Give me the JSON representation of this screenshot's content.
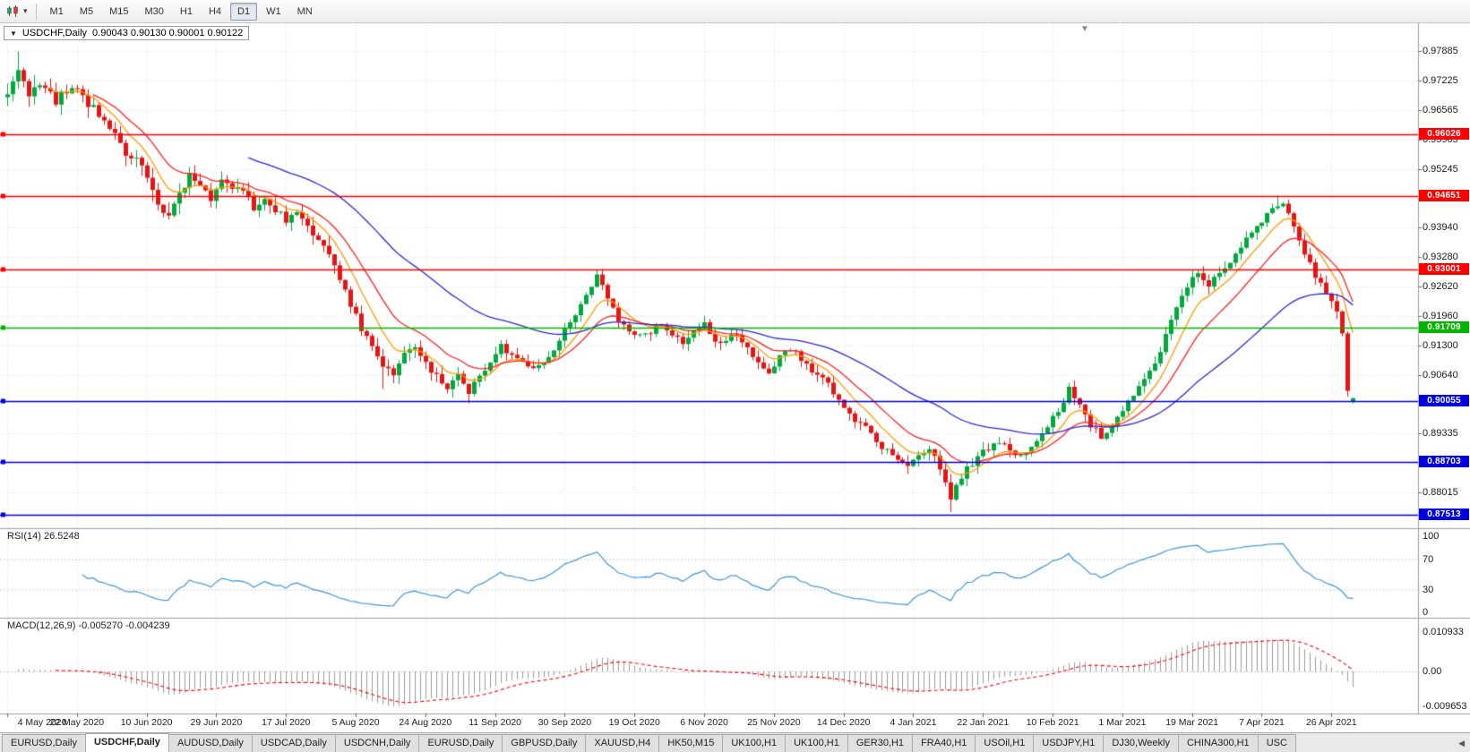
{
  "toolbar": {
    "timeframes": [
      "M1",
      "M5",
      "M15",
      "M30",
      "H1",
      "H4",
      "D1",
      "W1",
      "MN"
    ],
    "active": "D1"
  },
  "title": {
    "symbol": "USDCHF,Daily",
    "ohlc": "0.90043 0.90130 0.90001 0.90122"
  },
  "panels": {
    "rsi": {
      "name": "RSI(14)",
      "value": "26.5248",
      "axis": [
        "100",
        "70",
        "30",
        "0"
      ],
      "axis_values": [
        100,
        70,
        30,
        0
      ],
      "levels": [
        70,
        30
      ]
    },
    "macd": {
      "name": "MACD(12,26,9)",
      "value": "-0.005270 -0.004239",
      "axis": [
        "0.010933",
        "0.00",
        "-0.009653"
      ],
      "axis_values": [
        0.010933,
        0,
        -0.009653
      ]
    }
  },
  "tabs": {
    "items": [
      "EURUSD,Daily",
      "USDCHF,Daily",
      "AUDUSD,Daily",
      "USDCAD,Daily",
      "USDCNH,Daily",
      "EURUSD,Daily",
      "GBPUSD,Daily",
      "XAUUSD,H4",
      "HK50,M15",
      "UK100,H1",
      "UK100,H1",
      "GER30,H1",
      "FRA40,H1",
      "USOil,H1",
      "USDJPY,H1",
      "DJ30,Weekly",
      "CHINA300,H1",
      "USC"
    ],
    "active_index": 1,
    "scroll_arrow": "◀"
  },
  "colors": {
    "up": "#00A93E",
    "down": "#E81414",
    "ma_fast": "#FF9900",
    "ma_mid": "#FF2020",
    "ma_slow": "#2A2AD4",
    "rsi_line": "#3C96DC",
    "macd_hist": "#9A9A9A",
    "macd_signal": "#FF0000",
    "grid": "#E0E0E0",
    "frame": "#9E9E9E"
  },
  "chart_data": {
    "type": "candlestick",
    "symbol": "USDCHF",
    "period": "Daily",
    "current_ohlc": {
      "open": 0.90043,
      "high": 0.9013,
      "low": 0.90001,
      "close": 0.90122
    },
    "bars": 252,
    "bars_per_tick": 13,
    "x_tick_labels": [
      "4 May 2020",
      "22 May 2020",
      "10 Jun 2020",
      "29 Jun 2020",
      "17 Jul 2020",
      "5 Aug 2020",
      "24 Aug 2020",
      "11 Sep 2020",
      "30 Sep 2020",
      "19 Oct 2020",
      "6 Nov 2020",
      "25 Nov 2020",
      "14 Dec 2020",
      "4 Jan 2021",
      "22 Jan 2021",
      "10 Feb 2021",
      "1 Mar 2021",
      "19 Mar 2021",
      "7 Apr 2021",
      "26 Apr 2021"
    ],
    "y_range": [
      0.87253,
      0.9847
    ],
    "y_axis_labels": [
      "0.97885",
      "0.97225",
      "0.96565",
      "0.95905",
      "0.95245",
      "0.94585",
      "0.93940",
      "0.93280",
      "0.92620",
      "0.91960",
      "0.91300",
      "0.90640",
      "0.89335",
      "0.88015"
    ],
    "horizontal_levels": [
      {
        "price": 0.96026,
        "label": "0.96026",
        "color": "#FF0000"
      },
      {
        "price": 0.94651,
        "label": "0.94651",
        "color": "#FF0000"
      },
      {
        "price": 0.93001,
        "label": "0.93001",
        "color": "#FF0000"
      },
      {
        "price": 0.91709,
        "label": "0.91709",
        "color": "#00B400"
      },
      {
        "price": 0.90055,
        "label": "0.90055",
        "color": "#0000E0"
      },
      {
        "price": 0.88703,
        "label": "0.88703",
        "color": "#0000E0"
      },
      {
        "price": 0.87513,
        "label": "0.87513",
        "color": "#0000E0"
      }
    ],
    "moving_averages": [
      {
        "type": "ema",
        "period": 8,
        "color_key": "ma_fast"
      },
      {
        "type": "ema",
        "period": 16,
        "color_key": "ma_mid"
      },
      {
        "type": "ema",
        "period": 45,
        "color_key": "ma_slow"
      }
    ],
    "indicators": {
      "rsi": {
        "period": 14,
        "current": 26.5248
      },
      "macd": {
        "fast": 12,
        "slow": 26,
        "signal": 9,
        "current": [
          -0.00527,
          -0.004239
        ]
      }
    },
    "close_keypoints": [
      [
        0,
        0.97
      ],
      [
        2,
        0.9745
      ],
      [
        4,
        0.969
      ],
      [
        6,
        0.9722
      ],
      [
        9,
        0.9678
      ],
      [
        11,
        0.9705
      ],
      [
        13,
        0.9712
      ],
      [
        15,
        0.9665
      ],
      [
        18,
        0.9642
      ],
      [
        20,
        0.96
      ],
      [
        22,
        0.9562
      ],
      [
        24,
        0.9548
      ],
      [
        26,
        0.9502
      ],
      [
        28,
        0.9442
      ],
      [
        30,
        0.9418
      ],
      [
        32,
        0.9472
      ],
      [
        34,
        0.9512
      ],
      [
        36,
        0.949
      ],
      [
        38,
        0.9455
      ],
      [
        40,
        0.9502
      ],
      [
        42,
        0.9488
      ],
      [
        44,
        0.947
      ],
      [
        46,
        0.944
      ],
      [
        48,
        0.9458
      ],
      [
        50,
        0.9436
      ],
      [
        52,
        0.941
      ],
      [
        54,
        0.9422
      ],
      [
        56,
        0.9396
      ],
      [
        58,
        0.9372
      ],
      [
        60,
        0.9335
      ],
      [
        62,
        0.9282
      ],
      [
        64,
        0.9222
      ],
      [
        66,
        0.9165
      ],
      [
        68,
        0.9125
      ],
      [
        70,
        0.9085
      ],
      [
        72,
        0.9068
      ],
      [
        74,
        0.9112
      ],
      [
        76,
        0.9128
      ],
      [
        78,
        0.9095
      ],
      [
        80,
        0.9058
      ],
      [
        82,
        0.9035
      ],
      [
        84,
        0.9068
      ],
      [
        86,
        0.9028
      ],
      [
        88,
        0.9066
      ],
      [
        90,
        0.9092
      ],
      [
        92,
        0.9126
      ],
      [
        94,
        0.911
      ],
      [
        96,
        0.9094
      ],
      [
        98,
        0.9072
      ],
      [
        100,
        0.9096
      ],
      [
        102,
        0.912
      ],
      [
        104,
        0.9162
      ],
      [
        106,
        0.9202
      ],
      [
        108,
        0.9246
      ],
      [
        110,
        0.9282
      ],
      [
        112,
        0.9236
      ],
      [
        114,
        0.919
      ],
      [
        116,
        0.9162
      ],
      [
        118,
        0.915
      ],
      [
        120,
        0.9162
      ],
      [
        122,
        0.9176
      ],
      [
        124,
        0.9156
      ],
      [
        126,
        0.914
      ],
      [
        128,
        0.9166
      ],
      [
        130,
        0.918
      ],
      [
        132,
        0.9136
      ],
      [
        134,
        0.9146
      ],
      [
        136,
        0.9156
      ],
      [
        138,
        0.912
      ],
      [
        140,
        0.9086
      ],
      [
        142,
        0.9062
      ],
      [
        144,
        0.9112
      ],
      [
        146,
        0.9126
      ],
      [
        148,
        0.91
      ],
      [
        150,
        0.9076
      ],
      [
        152,
        0.9056
      ],
      [
        154,
        0.9026
      ],
      [
        156,
        0.8992
      ],
      [
        158,
        0.8962
      ],
      [
        160,
        0.8946
      ],
      [
        162,
        0.8912
      ],
      [
        164,
        0.8892
      ],
      [
        166,
        0.8872
      ],
      [
        168,
        0.8856
      ],
      [
        170,
        0.8886
      ],
      [
        172,
        0.8896
      ],
      [
        174,
        0.8856
      ],
      [
        175,
        0.8816
      ],
      [
        176,
        0.8786
      ],
      [
        177,
        0.8812
      ],
      [
        179,
        0.8852
      ],
      [
        181,
        0.8882
      ],
      [
        183,
        0.8902
      ],
      [
        185,
        0.8912
      ],
      [
        187,
        0.8896
      ],
      [
        189,
        0.8882
      ],
      [
        191,
        0.8906
      ],
      [
        193,
        0.8936
      ],
      [
        195,
        0.8966
      ],
      [
        197,
        0.9002
      ],
      [
        198,
        0.9032
      ],
      [
        200,
        0.8992
      ],
      [
        202,
        0.8952
      ],
      [
        204,
        0.8926
      ],
      [
        206,
        0.8952
      ],
      [
        208,
        0.8986
      ],
      [
        210,
        0.9022
      ],
      [
        212,
        0.9062
      ],
      [
        214,
        0.9092
      ],
      [
        216,
        0.9152
      ],
      [
        218,
        0.9212
      ],
      [
        220,
        0.9262
      ],
      [
        222,
        0.9292
      ],
      [
        224,
        0.9266
      ],
      [
        226,
        0.9292
      ],
      [
        228,
        0.9312
      ],
      [
        230,
        0.9356
      ],
      [
        232,
        0.9386
      ],
      [
        234,
        0.9406
      ],
      [
        236,
        0.9436
      ],
      [
        238,
        0.9446
      ],
      [
        240,
        0.9392
      ],
      [
        242,
        0.9332
      ],
      [
        244,
        0.9286
      ],
      [
        246,
        0.9246
      ],
      [
        248,
        0.9202
      ],
      [
        249,
        0.9152
      ],
      [
        250,
        0.9025
      ],
      [
        251,
        0.90122
      ]
    ],
    "volatility_keypoints": [
      [
        0,
        0.0055
      ],
      [
        25,
        0.005
      ],
      [
        45,
        0.0042
      ],
      [
        60,
        0.004
      ],
      [
        75,
        0.0038
      ],
      [
        100,
        0.0032
      ],
      [
        130,
        0.003
      ],
      [
        160,
        0.0032
      ],
      [
        175,
        0.004
      ],
      [
        185,
        0.003
      ],
      [
        210,
        0.0032
      ],
      [
        235,
        0.0034
      ],
      [
        251,
        0.003
      ]
    ],
    "wick_overrides": {
      "high": [
        [
          2,
          0.9788
        ],
        [
          110,
          0.9299
        ],
        [
          198,
          0.9046
        ],
        [
          237,
          0.9466
        ]
      ],
      "low": [
        [
          70,
          0.9033
        ],
        [
          86,
          0.9001
        ],
        [
          176,
          0.8757
        ]
      ]
    }
  }
}
